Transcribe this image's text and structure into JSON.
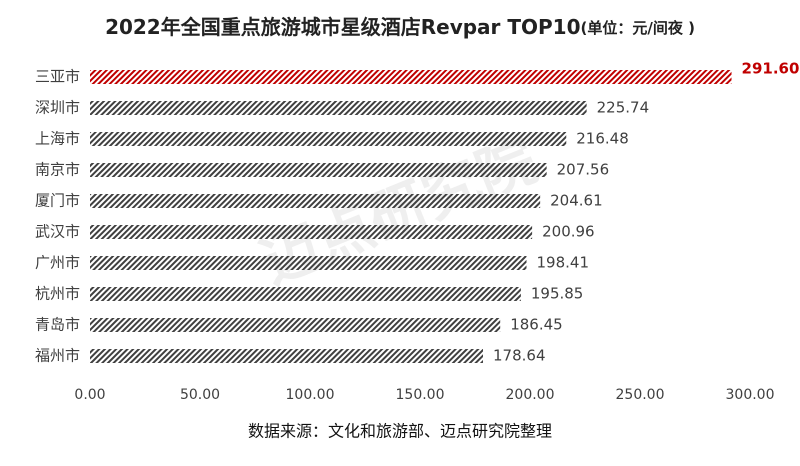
{
  "chart_data": {
    "type": "bar",
    "orientation": "horizontal",
    "title": "2022年全国重点旅游城市星级酒店Revpar TOP10",
    "unit": "(单位：元/间夜 )",
    "categories": [
      "三亚市",
      "深圳市",
      "上海市",
      "南京市",
      "厦门市",
      "武汉市",
      "广州市",
      "杭州市",
      "青岛市",
      "福州市"
    ],
    "values": [
      291.6,
      225.74,
      216.48,
      207.56,
      204.61,
      200.96,
      198.41,
      195.85,
      186.45,
      178.64
    ],
    "value_labels": [
      "291.60",
      "225.74",
      "216.48",
      "207.56",
      "204.61",
      "200.96",
      "198.41",
      "195.85",
      "186.45",
      "178.64"
    ],
    "colors": [
      "#c00000",
      "#404040",
      "#404040",
      "#404040",
      "#404040",
      "#404040",
      "#404040",
      "#404040",
      "#404040",
      "#404040"
    ],
    "xlim": [
      0,
      300
    ],
    "xticks": [
      {
        "value": 0,
        "label": "0.00"
      },
      {
        "value": 50,
        "label": "50.00"
      },
      {
        "value": 100,
        "label": "100.00"
      },
      {
        "value": 150,
        "label": "150.00"
      },
      {
        "value": 200,
        "label": "200.00"
      },
      {
        "value": 250,
        "label": "250.00"
      },
      {
        "value": 300,
        "label": "300.00"
      }
    ],
    "source": "数据来源：文化和旅游部、迈点研究院整理",
    "watermark": "迈点研究院"
  }
}
